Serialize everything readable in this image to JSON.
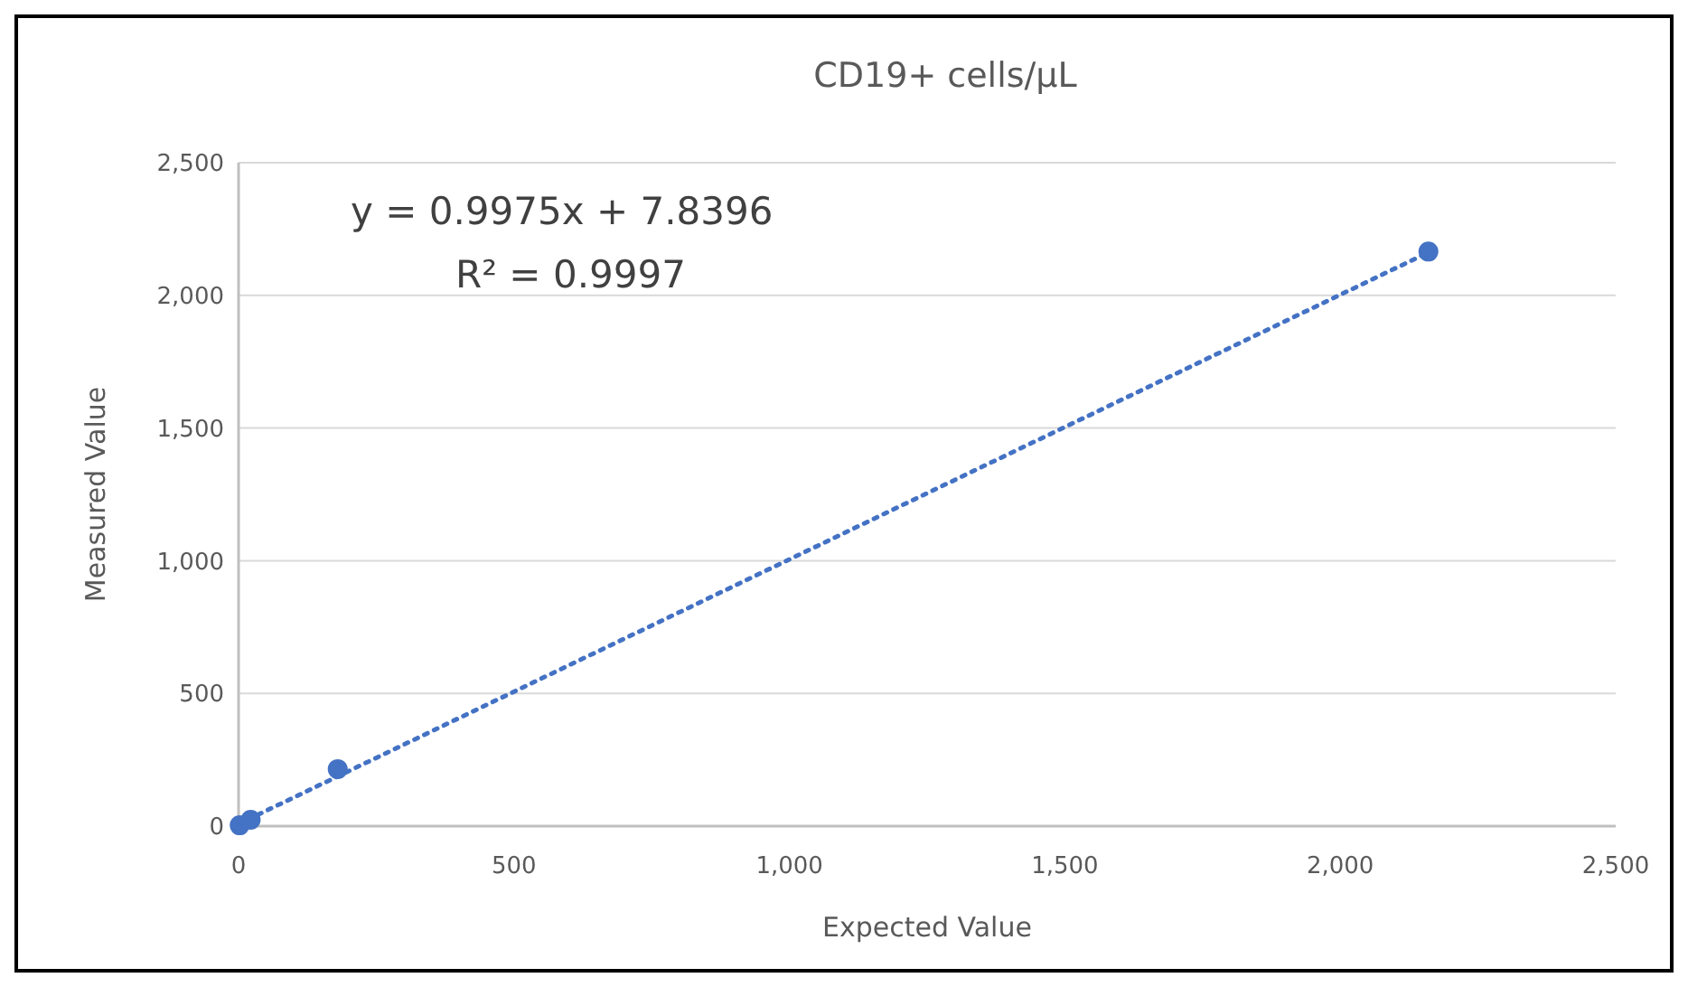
{
  "chart_data": {
    "type": "scatter",
    "title": "CD19+ cells/µL",
    "xlabel": "Expected Value",
    "ylabel": "Measured Value",
    "x": [
      2,
      22,
      180,
      2160
    ],
    "series": [
      {
        "color": "#4472c4",
        "values": [
          3,
          24,
          215,
          2165
        ]
      },
      {
        "type": "line",
        "color": "#4472c4",
        "x": [
          0,
          2160
        ],
        "values": [
          8,
          2162
        ],
        "line_style": "dotted",
        "marker": "none"
      }
    ],
    "annotations": [
      "y = 0.9975x + 7.8396",
      "R² = 0.9997"
    ],
    "xlim": [
      0,
      2500
    ],
    "xticks": [
      0,
      {
        "value": 500,
        "label": "500"
      },
      {
        "value": 1000,
        "label": "1,000"
      },
      {
        "value": 1500,
        "label": "1,500"
      },
      {
        "value": 2000,
        "label": "2,000"
      },
      {
        "value": 2500,
        "label": "2,500"
      }
    ],
    "ylim": [
      0,
      2500
    ],
    "yticks": [
      0,
      {
        "value": 500,
        "label": "500"
      },
      {
        "value": 1000,
        "label": "1,000"
      },
      {
        "value": 1500,
        "label": "1,500"
      },
      {
        "value": 2000,
        "label": "2,000"
      },
      {
        "value": 2500,
        "label": "2,500"
      }
    ],
    "grid": "y",
    "marker": "circle"
  }
}
